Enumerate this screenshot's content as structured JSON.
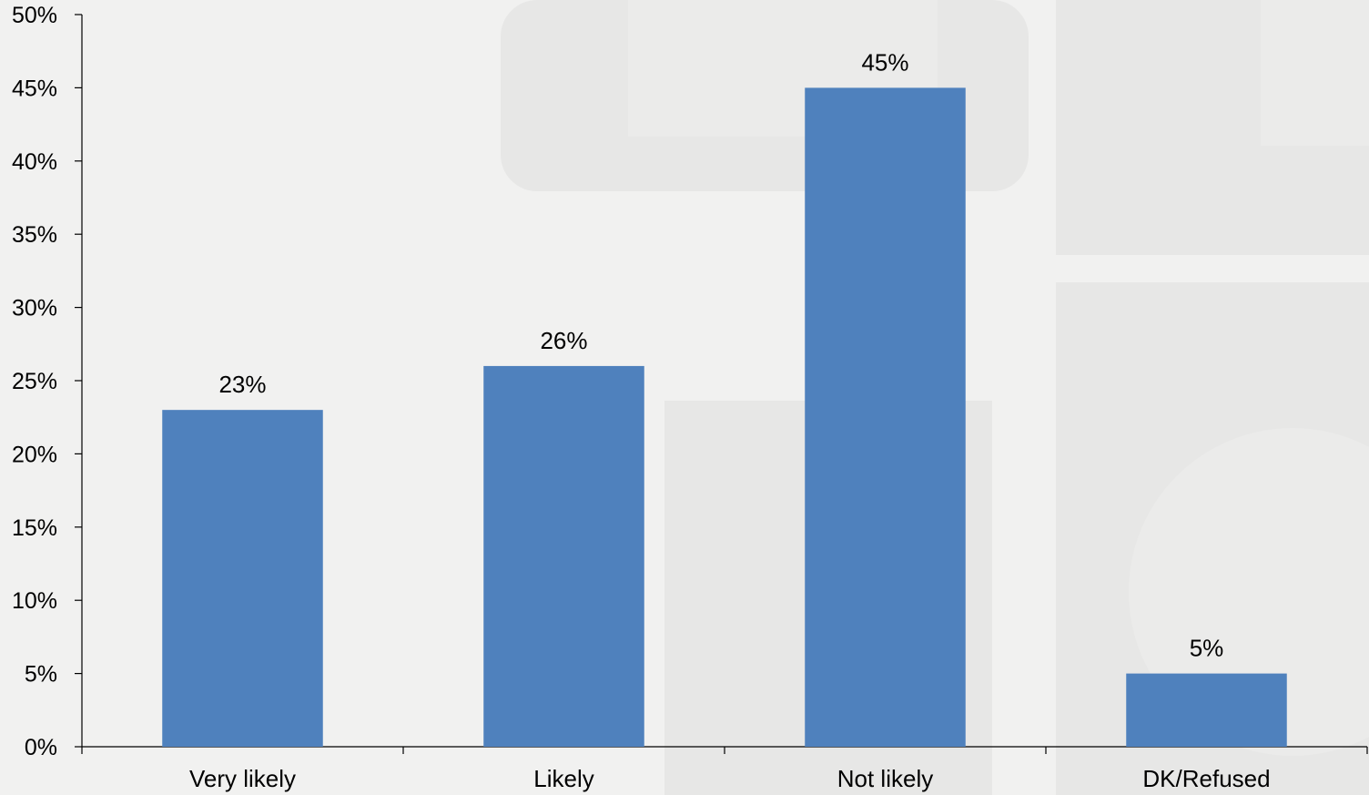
{
  "chart_data": {
    "type": "bar",
    "title": "",
    "xlabel": "",
    "ylabel": "",
    "categories": [
      "Very likely",
      "Likely",
      "Not likely",
      "DK/Refused"
    ],
    "values": [
      23,
      26,
      45,
      5
    ],
    "data_labels": [
      "23%",
      "26%",
      "45%",
      "5%"
    ],
    "ylim": [
      0,
      50
    ],
    "yticks": [
      0,
      5,
      10,
      15,
      20,
      25,
      30,
      35,
      40,
      45,
      50
    ],
    "ytick_labels": [
      "0%",
      "5%",
      "10%",
      "15%",
      "20%",
      "25%",
      "30%",
      "35%",
      "40%",
      "45%",
      "50%"
    ],
    "grid": false,
    "legend": "none",
    "colors": {
      "bar": "#4f81bd",
      "background": "#f1f1f0",
      "watermark": "#e7e7e6"
    }
  }
}
